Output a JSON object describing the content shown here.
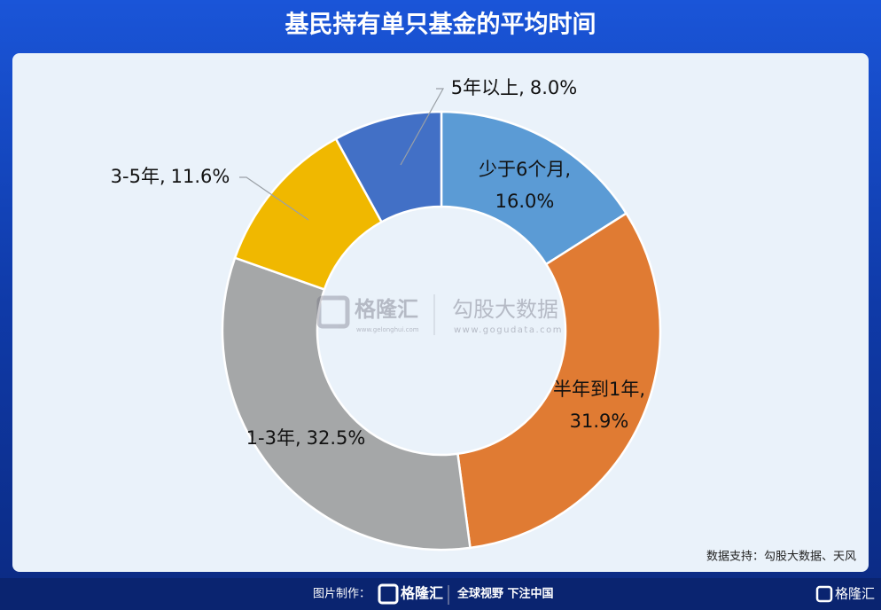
{
  "chart_data": {
    "type": "pie",
    "title": "基民持有单只基金的平均时间",
    "categories": [
      "少于6个月",
      "半年到1年",
      "1-3年",
      "3-5年",
      "5年以上"
    ],
    "values": [
      16.0,
      31.9,
      32.5,
      11.6,
      8.0
    ],
    "value_labels": [
      "16.0%",
      "31.9%",
      "32.5%",
      "11.6%",
      "8.0%"
    ],
    "label_separator": ",",
    "colors": [
      "#5b9bd5",
      "#e07b33",
      "#a5a7a8",
      "#f0b800",
      "#4270c6"
    ],
    "source": "数据支持：勾股大数据、天风",
    "watermark": {
      "brand": "格隆汇",
      "brand_url": "www.gelonghui.com",
      "partner": "勾股大数据",
      "partner_url": "www.gogudata.com"
    },
    "footer": {
      "made_by": "图片制作：",
      "brand": "格隆汇",
      "slogan": "全球视野 下注中国",
      "corner_brand": "格隆汇"
    }
  }
}
